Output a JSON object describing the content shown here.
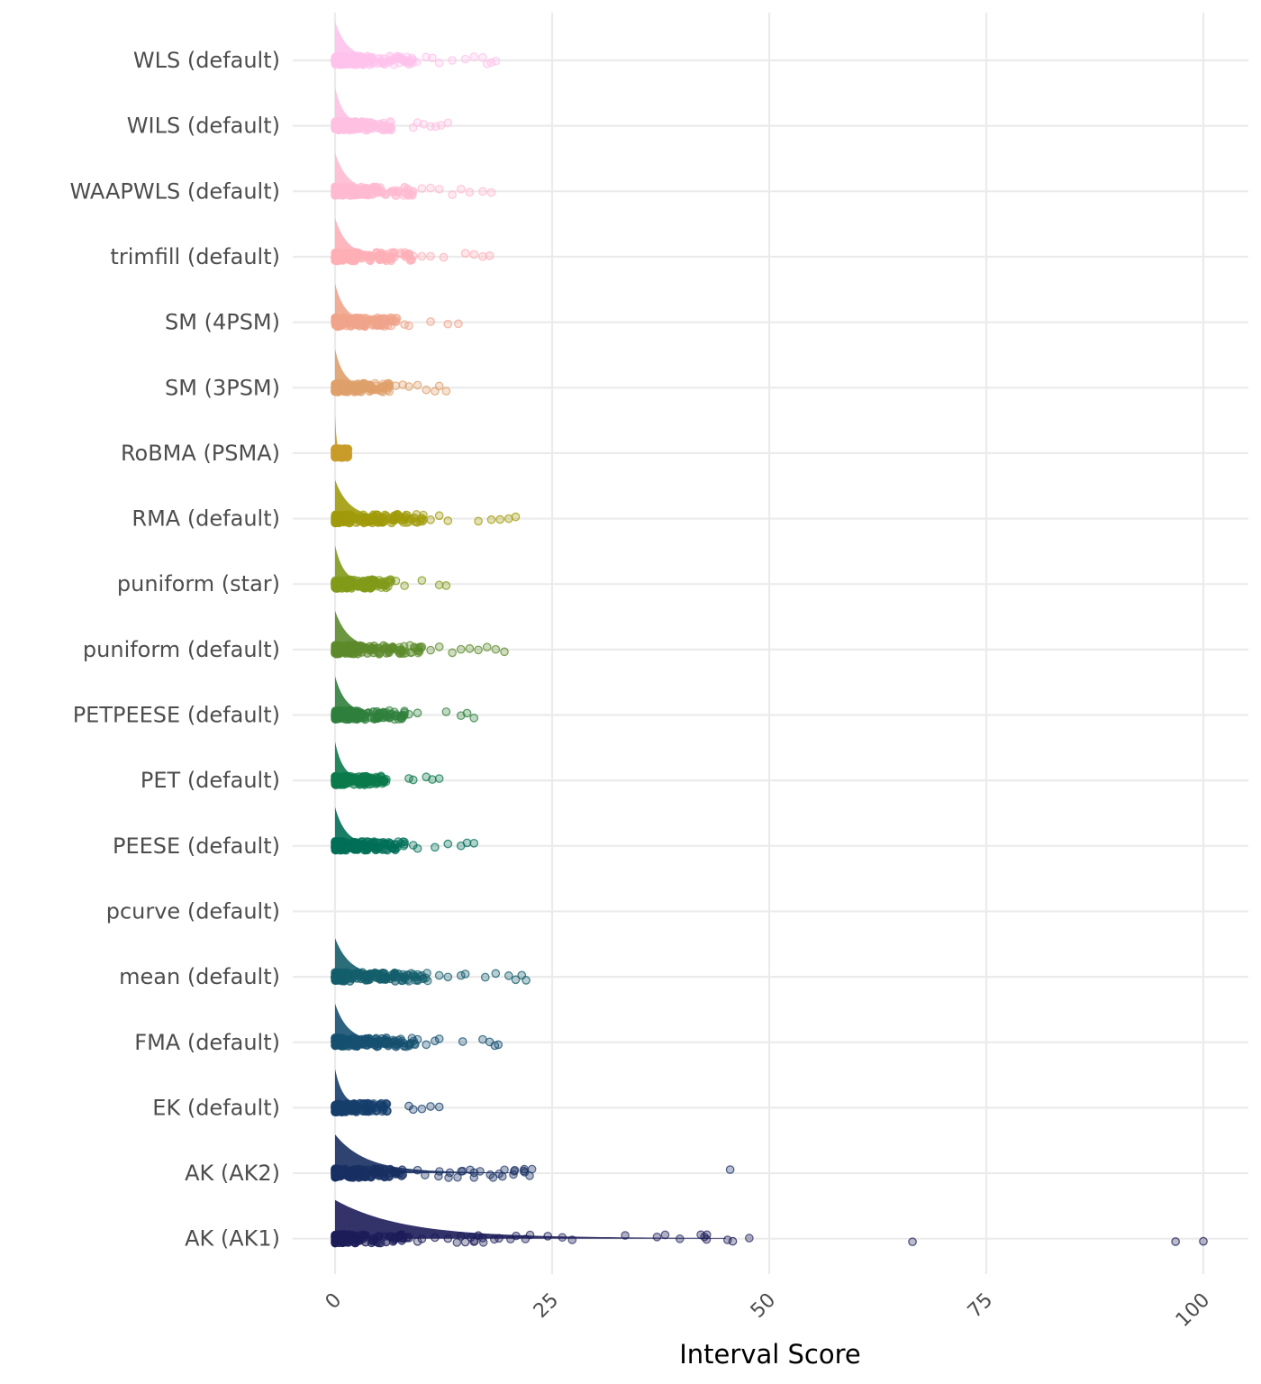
{
  "chart_data": {
    "type": "scatter",
    "subtype": "jittered strip plot with half-density ridges",
    "title": "",
    "xlabel": "Interval Score",
    "ylabel": "",
    "xlim": [
      0,
      105
    ],
    "x_ticks": [
      0,
      25,
      50,
      75,
      100
    ],
    "x_tick_labels": [
      "0",
      "25",
      "50",
      "75",
      "100"
    ],
    "x_tick_label_rotation": -45,
    "grid": true,
    "legend": "none",
    "categories": [
      "WLS (default)",
      "WILS (default)",
      "WAAPWLS (default)",
      "trimfill (default)",
      "SM (4PSM)",
      "SM (3PSM)",
      "RoBMA (PSMA)",
      "RMA (default)",
      "puniform (star)",
      "puniform (default)",
      "PETPEESE (default)",
      "PET (default)",
      "PEESE (default)",
      "pcurve (default)",
      "mean (default)",
      "FMA (default)",
      "EK (default)",
      "AK (AK2)",
      "AK (AK1)"
    ],
    "series": [
      {
        "name": "WLS (default)",
        "color": "#ffc2ec",
        "max": 19.0,
        "outliers": [
          10.5,
          11.2,
          12.0,
          13.5,
          15.0,
          16.0,
          17.0,
          17.5,
          18.0,
          18.5
        ]
      },
      {
        "name": "WILS (default)",
        "color": "#ffc0e2",
        "max": 13.0,
        "outliers": [
          9.0,
          9.5,
          10.2,
          11.0,
          11.6,
          12.2,
          13.0
        ]
      },
      {
        "name": "WAAPWLS (default)",
        "color": "#ffbad2",
        "max": 18.0,
        "outliers": [
          9.0,
          10.0,
          11.0,
          12.0,
          13.5,
          14.5,
          15.5,
          17.0,
          18.0
        ]
      },
      {
        "name": "trimfill (default)",
        "color": "#ffafb6",
        "max": 18.0,
        "outliers": [
          9.0,
          10.0,
          11.0,
          12.5,
          15.0,
          16.0,
          17.0,
          17.8
        ]
      },
      {
        "name": "SM (4PSM)",
        "color": "#f0a48b",
        "max": 14.5,
        "outliers": [
          5.8,
          6.5,
          8.0,
          8.5,
          11.0,
          13.0,
          14.2
        ]
      },
      {
        "name": "SM (3PSM)",
        "color": "#dfa06b",
        "max": 13.0,
        "outliers": [
          7.0,
          7.8,
          8.5,
          9.5,
          10.5,
          11.5,
          12.0,
          12.8
        ]
      },
      {
        "name": "RoBMA (PSMA)",
        "color": "#c99c2a",
        "max": 2.3,
        "outliers": []
      },
      {
        "name": "RMA (default)",
        "color": "#a19b0b",
        "max": 21.0,
        "outliers": [
          10.0,
          11.0,
          12.0,
          13.0,
          16.5,
          18.0,
          19.0,
          20.0,
          20.8
        ]
      },
      {
        "name": "puniform (star)",
        "color": "#829a19",
        "max": 13.0,
        "outliers": [
          6.0,
          7.0,
          8.0,
          10.0,
          12.0,
          12.8
        ]
      },
      {
        "name": "puniform (default)",
        "color": "#5c8b2c",
        "max": 20.0,
        "outliers": [
          10.0,
          11.0,
          12.0,
          13.5,
          14.5,
          15.5,
          16.5,
          17.5,
          18.5,
          19.5
        ]
      },
      {
        "name": "PETPEESE (default)",
        "color": "#30803d",
        "max": 16.0,
        "outliers": [
          7.0,
          8.0,
          8.5,
          9.5,
          12.8,
          14.5,
          15.2,
          16.0
        ]
      },
      {
        "name": "PET (default)",
        "color": "#0b7a4b",
        "max": 12.0,
        "outliers": [
          5.0,
          5.5,
          8.5,
          9.0,
          10.5,
          11.2,
          12.0
        ]
      },
      {
        "name": "PEESE (default)",
        "color": "#016f58",
        "max": 16.0,
        "outliers": [
          7.0,
          8.0,
          9.0,
          9.5,
          11.5,
          13.0,
          14.5,
          15.2,
          16.0
        ]
      },
      {
        "name": "pcurve (default)",
        "color": "#0e6866",
        "max": null,
        "outliers": []
      },
      {
        "name": "mean (default)",
        "color": "#145e6c",
        "max": 22.0,
        "outliers": [
          12.0,
          13.0,
          14.5,
          15.0,
          17.3,
          18.5,
          20.0,
          20.8,
          21.5,
          22.0
        ]
      },
      {
        "name": "FMA (default)",
        "color": "#155071",
        "max": 19.0,
        "outliers": [
          9.5,
          10.5,
          11.5,
          12.0,
          14.7,
          17.0,
          17.8,
          18.4,
          18.8
        ]
      },
      {
        "name": "EK (default)",
        "color": "#163e6c",
        "max": 12.0,
        "outliers": [
          5.5,
          6.0,
          8.5,
          9.0,
          10.0,
          11.0,
          12.0
        ]
      },
      {
        "name": "AK (AK2)",
        "color": "#182f62",
        "max": 45.5,
        "outliers": [
          2.5,
          4.7,
          9.5,
          45.5
        ]
      },
      {
        "name": "AK (AK1)",
        "color": "#1d1d5a",
        "max": 100.0,
        "outliers": [
          9.5,
          10.0,
          11.5,
          13.0,
          14.5,
          15.0,
          16.0,
          16.5,
          17.0,
          24.5,
          45.8,
          66.5,
          96.8,
          100.0
        ]
      }
    ]
  }
}
